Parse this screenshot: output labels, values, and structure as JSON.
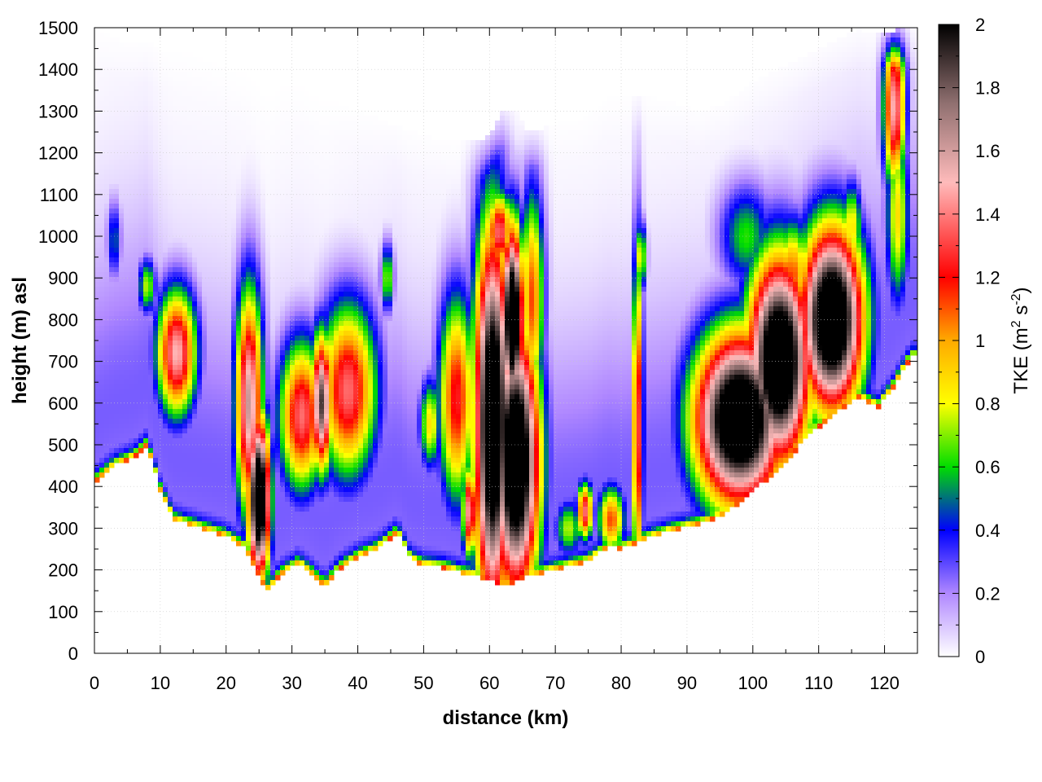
{
  "chart_data": {
    "type": "heatmap",
    "title": "",
    "xlabel": "distance (km)",
    "ylabel": "height (m) asl",
    "xlim": [
      0,
      125
    ],
    "ylim": [
      0,
      1500
    ],
    "x_ticks": [
      0,
      10,
      20,
      30,
      40,
      50,
      60,
      70,
      80,
      90,
      100,
      110,
      120
    ],
    "y_ticks": [
      0,
      100,
      200,
      300,
      400,
      500,
      600,
      700,
      800,
      900,
      1000,
      1100,
      1200,
      1300,
      1400,
      1500
    ],
    "grid": true,
    "colorbar": {
      "label_prefix": "TKE (m",
      "label_sup1": "2",
      "label_mid": " s",
      "label_sup2": "-2",
      "label_suffix": ")",
      "range": [
        0,
        2
      ],
      "ticks": [
        "0",
        "0.2",
        "0.4",
        "0.6",
        "0.8",
        "1",
        "1.2",
        "1.4",
        "1.6",
        "1.8",
        "2"
      ],
      "palette": [
        {
          "v": 0.0,
          "color": "#ffffff"
        },
        {
          "v": 0.2,
          "color": "#b088ff"
        },
        {
          "v": 0.4,
          "color": "#0000ff"
        },
        {
          "v": 0.6,
          "color": "#00dd00"
        },
        {
          "v": 0.8,
          "color": "#ffff00"
        },
        {
          "v": 1.0,
          "color": "#ffaa00"
        },
        {
          "v": 1.2,
          "color": "#ff0000"
        },
        {
          "v": 1.5,
          "color": "#ffbbbb"
        },
        {
          "v": 1.75,
          "color": "#907070"
        },
        {
          "v": 2.0,
          "color": "#000000"
        }
      ]
    },
    "terrain": [
      {
        "x": 0,
        "y": 410
      },
      {
        "x": 3,
        "y": 450
      },
      {
        "x": 6,
        "y": 470
      },
      {
        "x": 8,
        "y": 500
      },
      {
        "x": 10,
        "y": 390
      },
      {
        "x": 12,
        "y": 320
      },
      {
        "x": 15,
        "y": 305
      },
      {
        "x": 18,
        "y": 290
      },
      {
        "x": 20,
        "y": 280
      },
      {
        "x": 23,
        "y": 250
      },
      {
        "x": 25,
        "y": 180
      },
      {
        "x": 26.5,
        "y": 150
      },
      {
        "x": 28,
        "y": 185
      },
      {
        "x": 31,
        "y": 215
      },
      {
        "x": 33,
        "y": 190
      },
      {
        "x": 35,
        "y": 160
      },
      {
        "x": 37,
        "y": 200
      },
      {
        "x": 40,
        "y": 230
      },
      {
        "x": 43,
        "y": 250
      },
      {
        "x": 46,
        "y": 290
      },
      {
        "x": 48,
        "y": 225
      },
      {
        "x": 50,
        "y": 210
      },
      {
        "x": 53,
        "y": 205
      },
      {
        "x": 56,
        "y": 190
      },
      {
        "x": 59,
        "y": 180
      },
      {
        "x": 62,
        "y": 160
      },
      {
        "x": 65,
        "y": 180
      },
      {
        "x": 70,
        "y": 200
      },
      {
        "x": 75,
        "y": 220
      },
      {
        "x": 78,
        "y": 255
      },
      {
        "x": 80,
        "y": 250
      },
      {
        "x": 84,
        "y": 275
      },
      {
        "x": 88,
        "y": 295
      },
      {
        "x": 92,
        "y": 310
      },
      {
        "x": 96,
        "y": 335
      },
      {
        "x": 100,
        "y": 390
      },
      {
        "x": 104,
        "y": 440
      },
      {
        "x": 108,
        "y": 515
      },
      {
        "x": 112,
        "y": 570
      },
      {
        "x": 116,
        "y": 615
      },
      {
        "x": 119,
        "y": 590
      },
      {
        "x": 121,
        "y": 630
      },
      {
        "x": 124,
        "y": 710
      }
    ],
    "top_boundary": [
      {
        "x": 0,
        "y": 1500
      },
      {
        "x": 5,
        "y": 1460
      },
      {
        "x": 9,
        "y": 1460
      },
      {
        "x": 10,
        "y": 1440
      },
      {
        "x": 14,
        "y": 1440
      },
      {
        "x": 20,
        "y": 1400
      },
      {
        "x": 25,
        "y": 1380
      },
      {
        "x": 30,
        "y": 1370
      },
      {
        "x": 35,
        "y": 1330
      },
      {
        "x": 40,
        "y": 1300
      },
      {
        "x": 45,
        "y": 1270
      },
      {
        "x": 50,
        "y": 1240
      },
      {
        "x": 55,
        "y": 1225
      },
      {
        "x": 59,
        "y": 1230
      },
      {
        "x": 60,
        "y": 1240
      },
      {
        "x": 62,
        "y": 1300
      },
      {
        "x": 64,
        "y": 1300
      },
      {
        "x": 66,
        "y": 1250
      },
      {
        "x": 70,
        "y": 1270
      },
      {
        "x": 74,
        "y": 1280
      },
      {
        "x": 78,
        "y": 1330
      },
      {
        "x": 83,
        "y": 1340
      },
      {
        "x": 88,
        "y": 1320
      },
      {
        "x": 92,
        "y": 1300
      },
      {
        "x": 96,
        "y": 1320
      },
      {
        "x": 100,
        "y": 1370
      },
      {
        "x": 105,
        "y": 1410
      },
      {
        "x": 110,
        "y": 1450
      },
      {
        "x": 116,
        "y": 1495
      },
      {
        "x": 120,
        "y": 1490
      },
      {
        "x": 124,
        "y": 1500
      }
    ],
    "features": [
      {
        "x": 3,
        "y": 990,
        "sx": 0.8,
        "sy": 70,
        "v": 0.4
      },
      {
        "x": 8,
        "y": 880,
        "sx": 1.0,
        "sy": 50,
        "v": 0.6
      },
      {
        "x": 12.5,
        "y": 720,
        "sx": 2.2,
        "sy": 110,
        "v": 1.2
      },
      {
        "x": 23.5,
        "y": 600,
        "sx": 1.5,
        "sy": 200,
        "v": 1.3
      },
      {
        "x": 25,
        "y": 370,
        "sx": 1.2,
        "sy": 140,
        "v": 2.0
      },
      {
        "x": 31.5,
        "y": 570,
        "sx": 2.5,
        "sy": 130,
        "v": 1.1
      },
      {
        "x": 34.5,
        "y": 600,
        "sx": 1.2,
        "sy": 120,
        "v": 1.5
      },
      {
        "x": 38.5,
        "y": 630,
        "sx": 3.2,
        "sy": 150,
        "v": 1.1
      },
      {
        "x": 44.5,
        "y": 900,
        "sx": 0.7,
        "sy": 60,
        "v": 0.6
      },
      {
        "x": 51,
        "y": 550,
        "sx": 1.2,
        "sy": 80,
        "v": 0.7
      },
      {
        "x": 55,
        "y": 610,
        "sx": 2.0,
        "sy": 180,
        "v": 1.0
      },
      {
        "x": 57,
        "y": 340,
        "sx": 0.8,
        "sy": 80,
        "v": 1.2
      },
      {
        "x": 60.5,
        "y": 550,
        "sx": 2.0,
        "sy": 330,
        "v": 2.0
      },
      {
        "x": 64,
        "y": 460,
        "sx": 2.6,
        "sy": 230,
        "v": 2.0
      },
      {
        "x": 63.5,
        "y": 800,
        "sx": 1.2,
        "sy": 160,
        "v": 2.0
      },
      {
        "x": 61.5,
        "y": 1010,
        "sx": 1.5,
        "sy": 70,
        "v": 1.1
      },
      {
        "x": 66.5,
        "y": 850,
        "sx": 1.3,
        "sy": 190,
        "v": 0.9
      },
      {
        "x": 64,
        "y": 290,
        "sx": 2.5,
        "sy": 80,
        "v": 0.8
      },
      {
        "x": 72,
        "y": 300,
        "sx": 1.5,
        "sy": 50,
        "v": 0.6
      },
      {
        "x": 74.5,
        "y": 340,
        "sx": 0.9,
        "sy": 50,
        "v": 1.1
      },
      {
        "x": 82.5,
        "y": 540,
        "sx": 0.6,
        "sy": 300,
        "v": 1.1
      },
      {
        "x": 83,
        "y": 950,
        "sx": 0.6,
        "sy": 60,
        "v": 0.7
      },
      {
        "x": 78.5,
        "y": 320,
        "sx": 1.5,
        "sy": 60,
        "v": 0.9
      },
      {
        "x": 98,
        "y": 560,
        "sx": 5.0,
        "sy": 150,
        "v": 2.0
      },
      {
        "x": 104,
        "y": 700,
        "sx": 3.5,
        "sy": 180,
        "v": 2.0
      },
      {
        "x": 112,
        "y": 800,
        "sx": 3.5,
        "sy": 160,
        "v": 2.0
      },
      {
        "x": 106,
        "y": 900,
        "sx": 2.0,
        "sy": 100,
        "v": 0.9
      },
      {
        "x": 115,
        "y": 1020,
        "sx": 1.2,
        "sy": 80,
        "v": 0.7
      },
      {
        "x": 99,
        "y": 1000,
        "sx": 3.0,
        "sy": 90,
        "v": 0.5
      },
      {
        "x": 121.5,
        "y": 1310,
        "sx": 1.2,
        "sy": 140,
        "v": 1.2
      },
      {
        "x": 122,
        "y": 1050,
        "sx": 1.3,
        "sy": 160,
        "v": 0.7
      }
    ]
  }
}
